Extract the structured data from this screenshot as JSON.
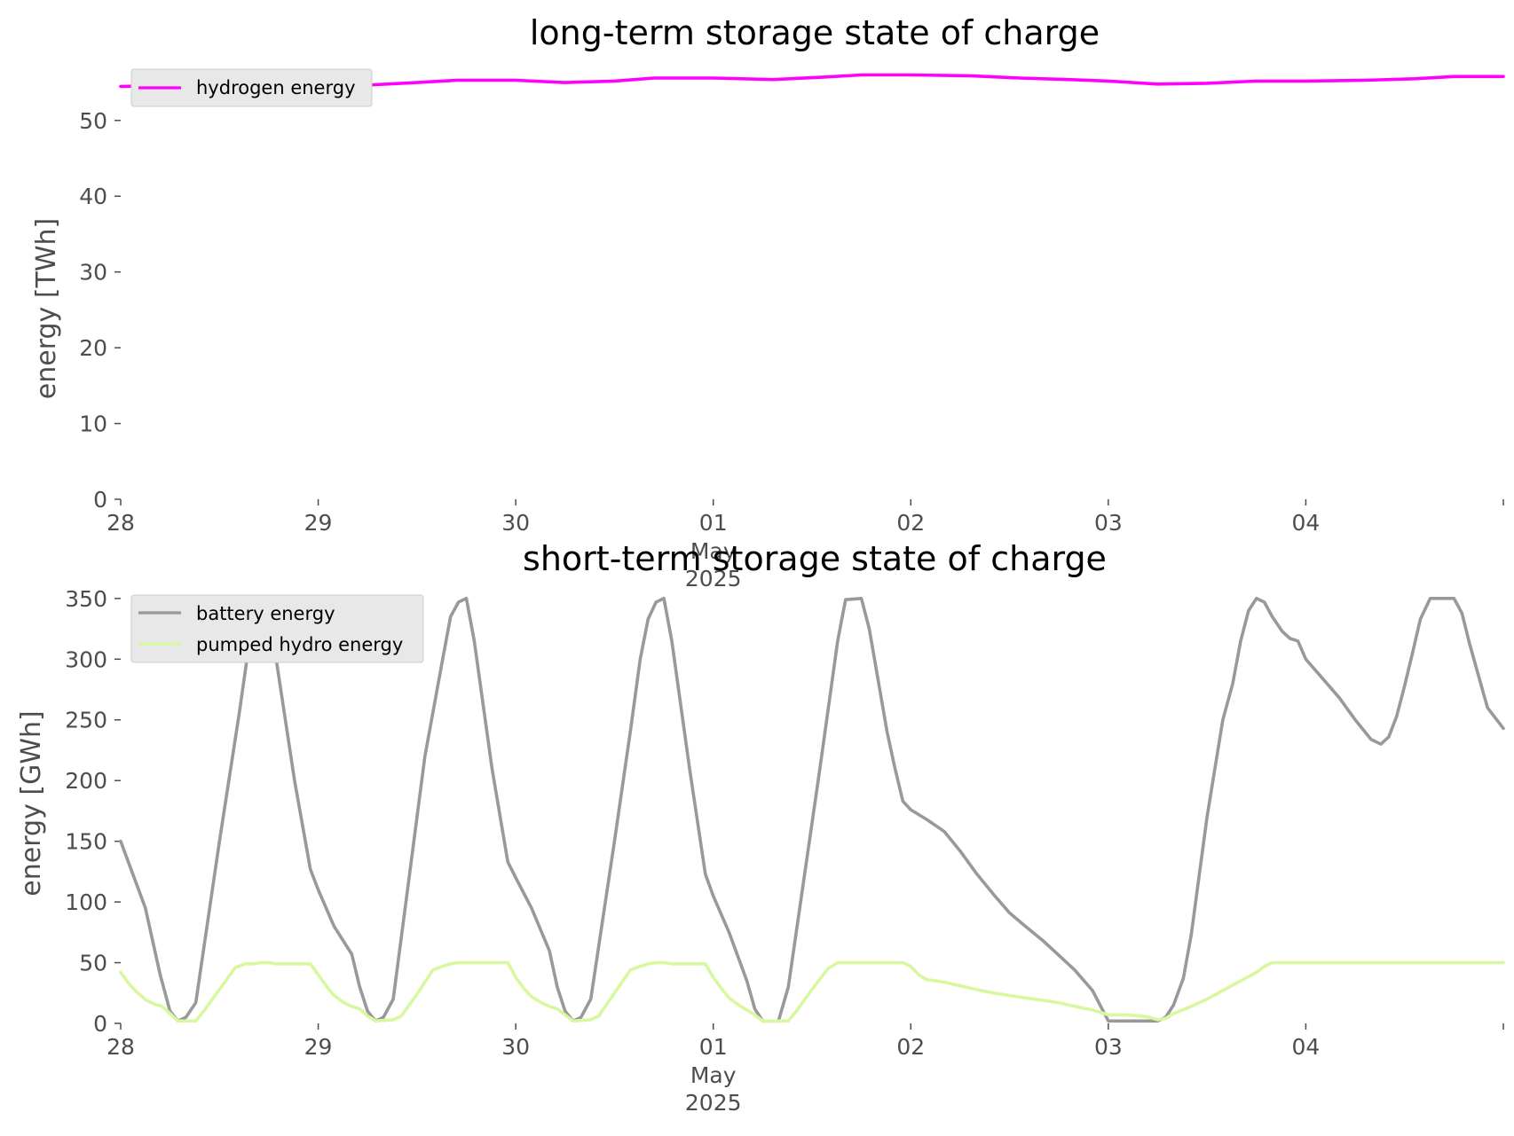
{
  "chart_data": [
    {
      "type": "line",
      "title": "long-term storage state of charge",
      "ylabel": "energy [TWh]",
      "xlabel": "",
      "ylim": [
        0,
        57
      ],
      "yticks": [
        "0",
        "10",
        "20",
        "30",
        "40",
        "50"
      ],
      "xlim": [
        0,
        7
      ],
      "xticks": [
        "28",
        "29",
        "30",
        "01",
        "02",
        "03",
        "04"
      ],
      "xtick_sublabels": [
        "May",
        "2025"
      ],
      "grid": false,
      "legend": "top-left",
      "series": [
        {
          "name": "hydrogen energy",
          "color": "#ff00ff",
          "points": [
            [
              0,
              54.5
            ],
            [
              0.3,
              54.6
            ],
            [
              0.6,
              54.7
            ],
            [
              0.9,
              54.5
            ],
            [
              1.2,
              54.6
            ],
            [
              1.5,
              55.0
            ],
            [
              1.7,
              55.3
            ],
            [
              2.0,
              55.3
            ],
            [
              2.25,
              55.0
            ],
            [
              2.5,
              55.2
            ],
            [
              2.7,
              55.6
            ],
            [
              3.0,
              55.6
            ],
            [
              3.3,
              55.4
            ],
            [
              3.55,
              55.7
            ],
            [
              3.75,
              56.0
            ],
            [
              4.0,
              56.0
            ],
            [
              4.3,
              55.9
            ],
            [
              4.55,
              55.6
            ],
            [
              4.8,
              55.4
            ],
            [
              5.0,
              55.2
            ],
            [
              5.25,
              54.8
            ],
            [
              5.5,
              54.9
            ],
            [
              5.75,
              55.2
            ],
            [
              6.0,
              55.2
            ],
            [
              6.3,
              55.3
            ],
            [
              6.55,
              55.5
            ],
            [
              6.75,
              55.8
            ],
            [
              7.0,
              55.8
            ]
          ]
        }
      ]
    },
    {
      "type": "line",
      "title": "short-term storage state of charge",
      "ylabel": "energy [GWh]",
      "xlabel": "",
      "ylim": [
        0,
        355
      ],
      "yticks": [
        "0",
        "50",
        "100",
        "150",
        "200",
        "250",
        "300",
        "350"
      ],
      "xlim": [
        0,
        7
      ],
      "xticks": [
        "28",
        "29",
        "30",
        "01",
        "02",
        "03",
        "04"
      ],
      "xtick_sublabels": [
        "May",
        "2025"
      ],
      "grid": false,
      "legend": "top-left",
      "series": [
        {
          "name": "battery energy",
          "color": "#999999",
          "points": [
            [
              0.0,
              150
            ],
            [
              0.125,
              95
            ],
            [
              0.2,
              40
            ],
            [
              0.25,
              10
            ],
            [
              0.29,
              2
            ],
            [
              0.33,
              5
            ],
            [
              0.38,
              17
            ],
            [
              0.5,
              150
            ],
            [
              0.6,
              255
            ],
            [
              0.67,
              335
            ],
            [
              0.71,
              350
            ],
            [
              0.75,
              340
            ],
            [
              0.88,
              200
            ],
            [
              0.96,
              127
            ],
            [
              1.0,
              110
            ],
            [
              1.08,
              80
            ],
            [
              1.17,
              57
            ],
            [
              1.21,
              30
            ],
            [
              1.25,
              10
            ],
            [
              1.29,
              2
            ],
            [
              1.33,
              5
            ],
            [
              1.38,
              20
            ],
            [
              1.46,
              120
            ],
            [
              1.54,
              220
            ],
            [
              1.63,
              300
            ],
            [
              1.67,
              335
            ],
            [
              1.71,
              347
            ],
            [
              1.75,
              350
            ],
            [
              1.79,
              315
            ],
            [
              1.88,
              210
            ],
            [
              1.96,
              133
            ],
            [
              2.0,
              120
            ],
            [
              2.08,
              95
            ],
            [
              2.17,
              60
            ],
            [
              2.21,
              30
            ],
            [
              2.25,
              10
            ],
            [
              2.29,
              2
            ],
            [
              2.33,
              5
            ],
            [
              2.38,
              20
            ],
            [
              2.5,
              150
            ],
            [
              2.58,
              240
            ],
            [
              2.63,
              300
            ],
            [
              2.67,
              333
            ],
            [
              2.71,
              347
            ],
            [
              2.75,
              350
            ],
            [
              2.79,
              315
            ],
            [
              2.88,
              210
            ],
            [
              2.96,
              123
            ],
            [
              3.0,
              105
            ],
            [
              3.08,
              75
            ],
            [
              3.17,
              35
            ],
            [
              3.21,
              12
            ],
            [
              3.25,
              2
            ],
            [
              3.33,
              2
            ],
            [
              3.38,
              30
            ],
            [
              3.46,
              120
            ],
            [
              3.54,
              210
            ],
            [
              3.63,
              315
            ],
            [
              3.67,
              349
            ],
            [
              3.75,
              350
            ],
            [
              3.79,
              325
            ],
            [
              3.88,
              240
            ],
            [
              3.92,
              210
            ],
            [
              3.96,
              183
            ],
            [
              4.0,
              176
            ],
            [
              4.08,
              168
            ],
            [
              4.17,
              158
            ],
            [
              4.25,
              142
            ],
            [
              4.33,
              124
            ],
            [
              4.42,
              106
            ],
            [
              4.5,
              91
            ],
            [
              4.58,
              80
            ],
            [
              4.67,
              68
            ],
            [
              4.75,
              56
            ],
            [
              4.83,
              44
            ],
            [
              4.92,
              27
            ],
            [
              5.0,
              2
            ],
            [
              5.25,
              2
            ],
            [
              5.29,
              5
            ],
            [
              5.33,
              15
            ],
            [
              5.38,
              37
            ],
            [
              5.42,
              73
            ],
            [
              5.5,
              170
            ],
            [
              5.58,
              250
            ],
            [
              5.63,
              280
            ],
            [
              5.67,
              315
            ],
            [
              5.71,
              340
            ],
            [
              5.75,
              350
            ],
            [
              5.79,
              347
            ],
            [
              5.83,
              335
            ],
            [
              5.88,
              323
            ],
            [
              5.92,
              317
            ],
            [
              5.96,
              315
            ],
            [
              6.0,
              300
            ],
            [
              6.08,
              285
            ],
            [
              6.17,
              268
            ],
            [
              6.21,
              259
            ],
            [
              6.25,
              250
            ],
            [
              6.29,
              242
            ],
            [
              6.33,
              234
            ],
            [
              6.38,
              230
            ],
            [
              6.42,
              236
            ],
            [
              6.46,
              253
            ],
            [
              6.5,
              278
            ],
            [
              6.54,
              305
            ],
            [
              6.58,
              333
            ],
            [
              6.63,
              350
            ],
            [
              6.75,
              350
            ],
            [
              6.79,
              338
            ],
            [
              6.83,
              312
            ],
            [
              6.88,
              283
            ],
            [
              6.92,
              260
            ],
            [
              7.0,
              243
            ]
          ]
        },
        {
          "name": "pumped hydro energy",
          "color": "#d8f8a0",
          "points": [
            [
              0.0,
              42
            ],
            [
              0.04,
              33
            ],
            [
              0.08,
              26
            ],
            [
              0.13,
              19
            ],
            [
              0.17,
              16
            ],
            [
              0.21,
              14
            ],
            [
              0.25,
              8
            ],
            [
              0.29,
              2
            ],
            [
              0.38,
              2
            ],
            [
              0.42,
              10
            ],
            [
              0.5,
              28
            ],
            [
              0.58,
              46
            ],
            [
              0.63,
              49
            ],
            [
              0.67,
              49
            ],
            [
              0.71,
              50
            ],
            [
              0.75,
              50
            ],
            [
              0.79,
              49
            ],
            [
              0.96,
              49
            ],
            [
              1.0,
              40
            ],
            [
              1.04,
              31
            ],
            [
              1.08,
              23
            ],
            [
              1.13,
              17
            ],
            [
              1.17,
              14
            ],
            [
              1.21,
              12
            ],
            [
              1.25,
              6
            ],
            [
              1.29,
              2
            ],
            [
              1.38,
              3
            ],
            [
              1.42,
              6
            ],
            [
              1.5,
              24
            ],
            [
              1.58,
              44
            ],
            [
              1.63,
              47
            ],
            [
              1.67,
              49
            ],
            [
              1.71,
              50
            ],
            [
              1.96,
              50
            ],
            [
              2.0,
              38
            ],
            [
              2.04,
              29
            ],
            [
              2.08,
              22
            ],
            [
              2.13,
              17
            ],
            [
              2.17,
              14
            ],
            [
              2.21,
              12
            ],
            [
              2.25,
              7
            ],
            [
              2.29,
              2
            ],
            [
              2.38,
              3
            ],
            [
              2.42,
              6
            ],
            [
              2.5,
              25
            ],
            [
              2.58,
              44
            ],
            [
              2.63,
              47
            ],
            [
              2.67,
              49
            ],
            [
              2.71,
              50
            ],
            [
              2.75,
              50
            ],
            [
              2.79,
              49
            ],
            [
              2.96,
              49
            ],
            [
              3.0,
              38
            ],
            [
              3.04,
              29
            ],
            [
              3.08,
              21
            ],
            [
              3.13,
              15
            ],
            [
              3.17,
              11
            ],
            [
              3.21,
              7
            ],
            [
              3.25,
              2
            ],
            [
              3.38,
              2
            ],
            [
              3.42,
              10
            ],
            [
              3.5,
              28
            ],
            [
              3.58,
              45
            ],
            [
              3.63,
              50
            ],
            [
              3.96,
              50
            ],
            [
              4.0,
              47
            ],
            [
              4.04,
              40
            ],
            [
              4.08,
              36
            ],
            [
              4.13,
              35
            ],
            [
              4.17,
              34
            ],
            [
              4.25,
              31
            ],
            [
              4.33,
              28
            ],
            [
              4.42,
              25
            ],
            [
              4.5,
              23
            ],
            [
              4.58,
              21
            ],
            [
              4.67,
              19
            ],
            [
              4.75,
              17
            ],
            [
              4.83,
              14
            ],
            [
              4.92,
              11
            ],
            [
              5.0,
              7
            ],
            [
              5.08,
              7
            ],
            [
              5.17,
              6
            ],
            [
              5.21,
              5
            ],
            [
              5.25,
              3
            ],
            [
              5.29,
              4
            ],
            [
              5.33,
              8
            ],
            [
              5.42,
              14
            ],
            [
              5.5,
              20
            ],
            [
              5.58,
              27
            ],
            [
              5.67,
              35
            ],
            [
              5.75,
              42
            ],
            [
              5.79,
              47
            ],
            [
              5.83,
              50
            ],
            [
              7.0,
              50
            ]
          ]
        }
      ]
    }
  ]
}
